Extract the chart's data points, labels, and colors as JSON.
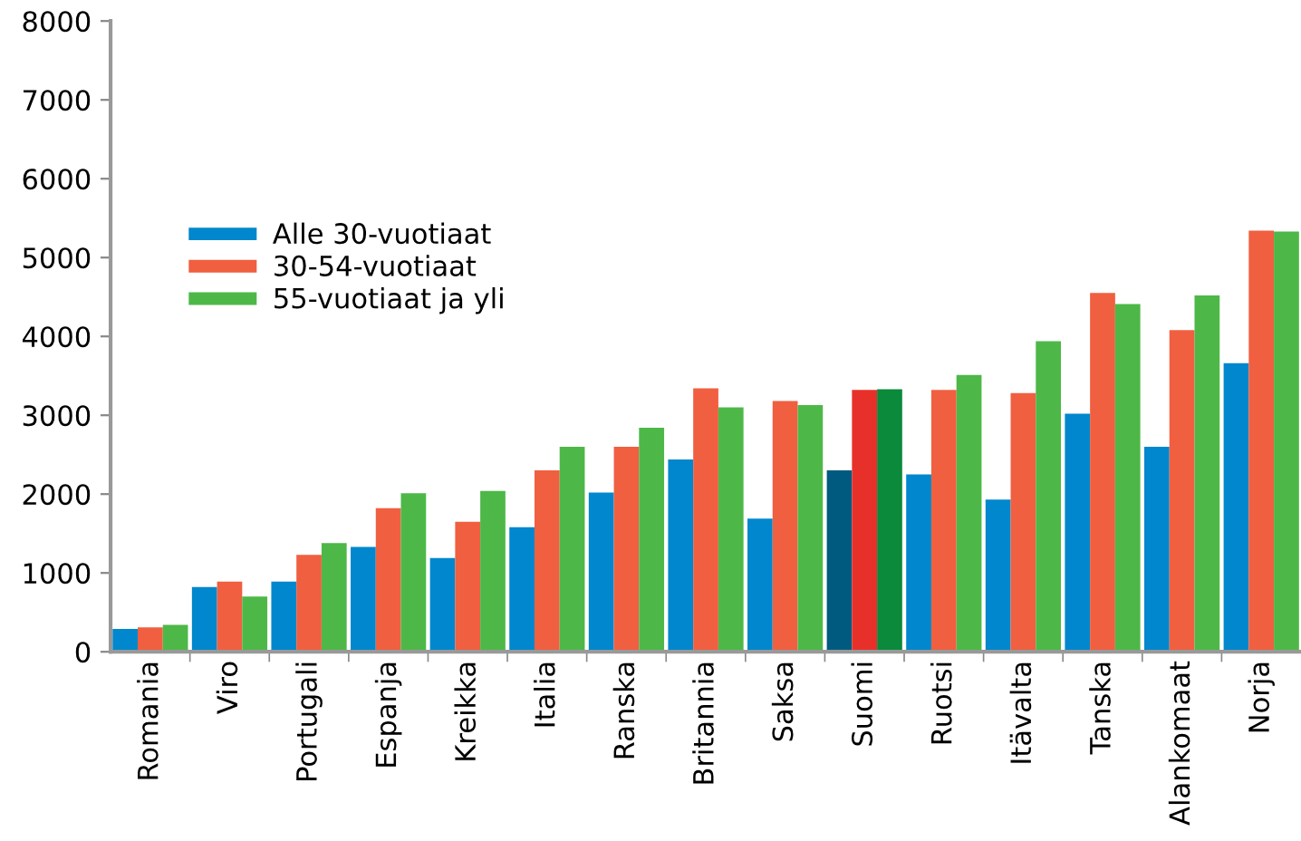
{
  "chart_data": {
    "type": "bar",
    "categories": [
      "Romania",
      "Viro",
      "Portugali",
      "Espanja",
      "Kreikka",
      "Italia",
      "Ranska",
      "Britannia",
      "Saksa",
      "Suomi",
      "Ruotsi",
      "Itävalta",
      "Tanska",
      "Alankomaat",
      "Norja"
    ],
    "series": [
      {
        "name": "Alle 30-vuotiaat",
        "color": "#0087cd",
        "colors": [
          "#0087cd",
          "#0087cd",
          "#0087cd",
          "#0087cd",
          "#0087cd",
          "#0087cd",
          "#0087cd",
          "#0087cd",
          "#0087cd",
          "#005a80",
          "#0087cd",
          "#0087cd",
          "#0087cd",
          "#0087cd",
          "#0087cd"
        ],
        "values": [
          290,
          820,
          890,
          1330,
          1190,
          1580,
          2020,
          2440,
          1690,
          2300,
          2250,
          1930,
          3020,
          2600,
          3660
        ]
      },
      {
        "name": "30-54-vuotiaat",
        "color": "#f05f40",
        "colors": [
          "#f05f40",
          "#f05f40",
          "#f05f40",
          "#f05f40",
          "#f05f40",
          "#f05f40",
          "#f05f40",
          "#f05f40",
          "#f05f40",
          "#e8302a",
          "#f05f40",
          "#f05f40",
          "#f05f40",
          "#f05f40",
          "#f05f40"
        ],
        "values": [
          310,
          890,
          1230,
          1820,
          1650,
          2300,
          2600,
          3340,
          3180,
          3320,
          3320,
          3280,
          4550,
          4080,
          5340
        ]
      },
      {
        "name": "55-vuotiaat ja yli",
        "color": "#4db848",
        "colors": [
          "#4db848",
          "#4db848",
          "#4db848",
          "#4db848",
          "#4db848",
          "#4db848",
          "#4db848",
          "#4db848",
          "#4db848",
          "#0a8a3a",
          "#4db848",
          "#4db848",
          "#4db848",
          "#4db848",
          "#4db848"
        ],
        "values": [
          340,
          700,
          1380,
          2010,
          2040,
          2600,
          2840,
          3100,
          3130,
          3330,
          3510,
          3940,
          4410,
          4520,
          5330
        ]
      }
    ],
    "ylim": [
      0,
      8000
    ],
    "yticks": [
      0,
      1000,
      2000,
      3000,
      4000,
      5000,
      6000,
      7000,
      8000
    ],
    "grid": false,
    "legend": "top left"
  }
}
